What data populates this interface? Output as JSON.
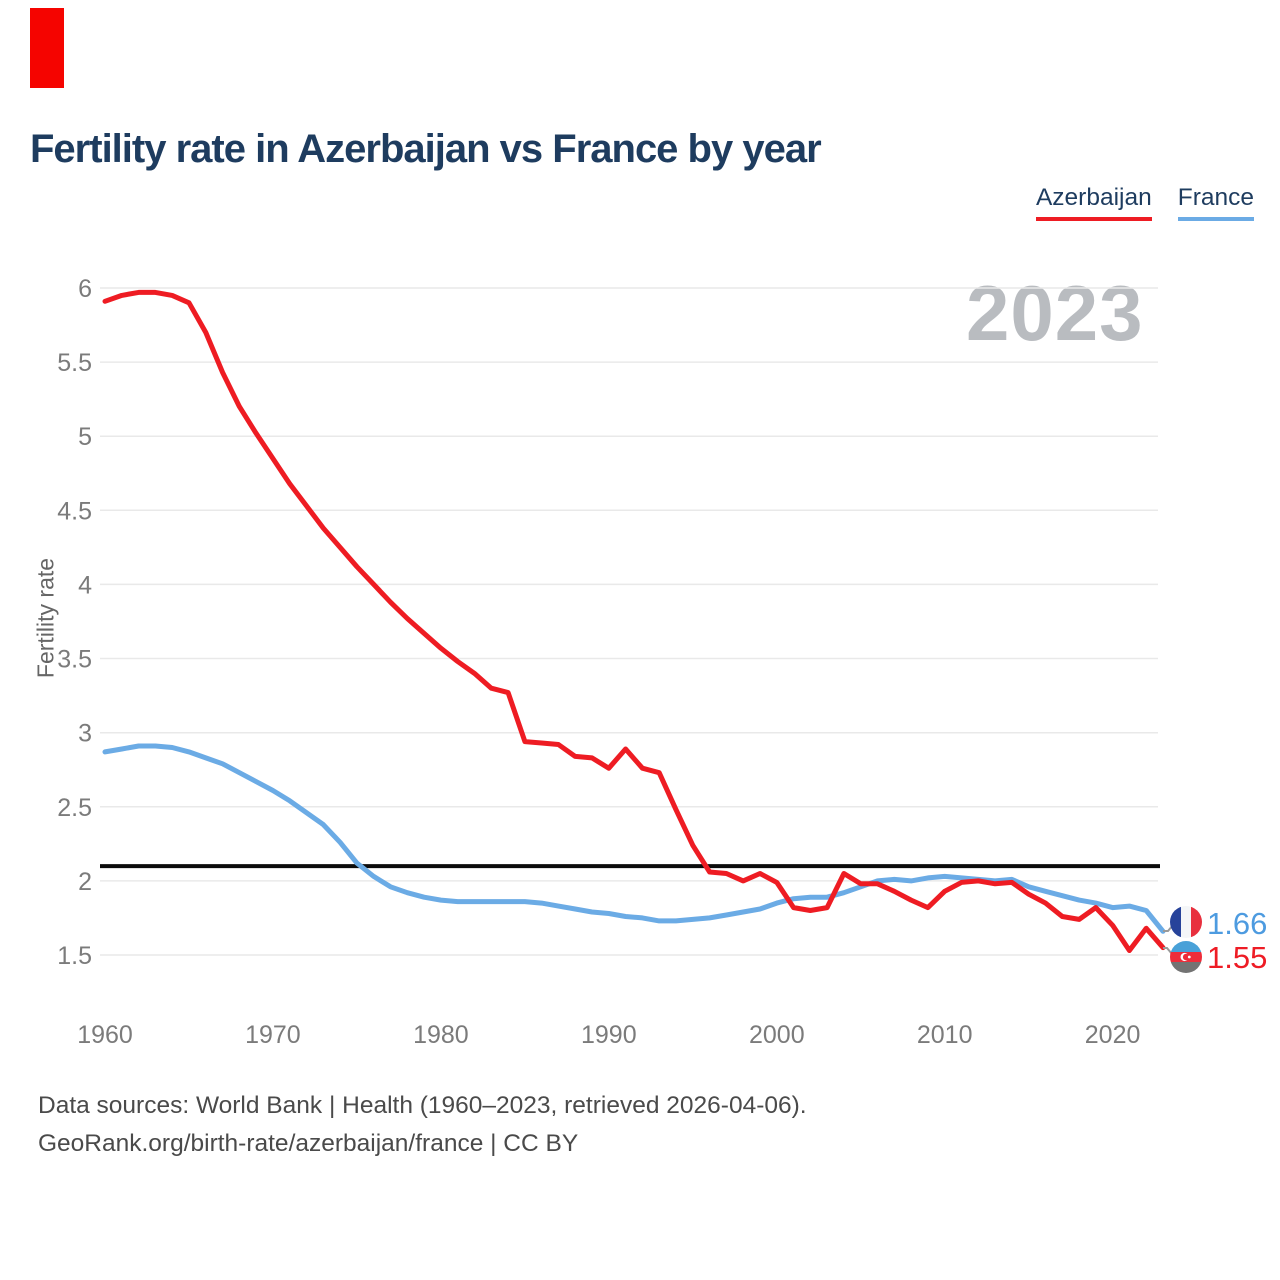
{
  "page": {
    "title": "Fertility rate in Azerbaijan vs France by year"
  },
  "watermark": "2023",
  "footer": {
    "line1": "Data sources: World Bank | Health (1960–2023, retrieved 2026-04-06).",
    "line2": "GeoRank.org/birth-rate/azerbaijan/france | CC BY"
  },
  "chart_data": {
    "type": "line",
    "title": "Fertility rate in Azerbaijan vs France by year",
    "ylabel": "Fertility rate",
    "xlabel": "",
    "x_ticks": [
      1960,
      1970,
      1980,
      1990,
      2000,
      2010,
      2020
    ],
    "y_ticks": [
      6,
      5.5,
      5,
      4.5,
      4,
      3.5,
      3,
      2.5,
      2,
      1.5
    ],
    "ylim": [
      1.3,
      6.1
    ],
    "xlim": [
      1960,
      2023
    ],
    "grid": true,
    "legend_position": "top-right",
    "threshold": 2.1,
    "x": [
      1960,
      1961,
      1962,
      1963,
      1964,
      1965,
      1966,
      1967,
      1968,
      1969,
      1970,
      1971,
      1972,
      1973,
      1974,
      1975,
      1976,
      1977,
      1978,
      1979,
      1980,
      1981,
      1982,
      1983,
      1984,
      1985,
      1986,
      1987,
      1988,
      1989,
      1990,
      1991,
      1992,
      1993,
      1994,
      1995,
      1996,
      1997,
      1998,
      1999,
      2000,
      2001,
      2002,
      2003,
      2004,
      2005,
      2006,
      2007,
      2008,
      2009,
      2010,
      2011,
      2012,
      2013,
      2014,
      2015,
      2016,
      2017,
      2018,
      2019,
      2020,
      2021,
      2022,
      2023
    ],
    "series": [
      {
        "name": "Azerbaijan",
        "color": "#ee1c23",
        "values": [
          5.91,
          5.95,
          5.97,
          5.97,
          5.95,
          5.9,
          5.7,
          5.43,
          5.2,
          5.02,
          4.85,
          4.68,
          4.53,
          4.38,
          4.25,
          4.12,
          4.0,
          3.88,
          3.77,
          3.67,
          3.57,
          3.48,
          3.4,
          3.3,
          3.27,
          2.94,
          2.93,
          2.92,
          2.84,
          2.83,
          2.76,
          2.89,
          2.76,
          2.73,
          2.48,
          2.24,
          2.06,
          2.05,
          2.0,
          2.05,
          1.99,
          1.82,
          1.8,
          1.82,
          2.05,
          1.98,
          1.98,
          1.93,
          1.87,
          1.82,
          1.93,
          1.99,
          2.0,
          1.98,
          1.99,
          1.91,
          1.85,
          1.76,
          1.74,
          1.82,
          1.7,
          1.53,
          1.68,
          1.55
        ]
      },
      {
        "name": "France",
        "color": "#6babe5",
        "values": [
          2.87,
          2.89,
          2.91,
          2.91,
          2.9,
          2.87,
          2.83,
          2.79,
          2.73,
          2.67,
          2.61,
          2.54,
          2.46,
          2.38,
          2.26,
          2.12,
          2.03,
          1.96,
          1.92,
          1.89,
          1.87,
          1.86,
          1.86,
          1.86,
          1.86,
          1.86,
          1.85,
          1.83,
          1.81,
          1.79,
          1.78,
          1.76,
          1.75,
          1.73,
          1.73,
          1.74,
          1.75,
          1.77,
          1.79,
          1.81,
          1.85,
          1.88,
          1.89,
          1.89,
          1.92,
          1.96,
          2.0,
          2.01,
          2.0,
          2.02,
          2.03,
          2.02,
          2.01,
          2.0,
          2.01,
          1.96,
          1.93,
          1.9,
          1.87,
          1.85,
          1.82,
          1.83,
          1.8,
          1.66
        ]
      }
    ],
    "end_labels": [
      {
        "series": "France",
        "value": "1.66",
        "color": "#4d9be0"
      },
      {
        "series": "Azerbaijan",
        "value": "1.55",
        "color": "#ee1c25"
      }
    ]
  }
}
